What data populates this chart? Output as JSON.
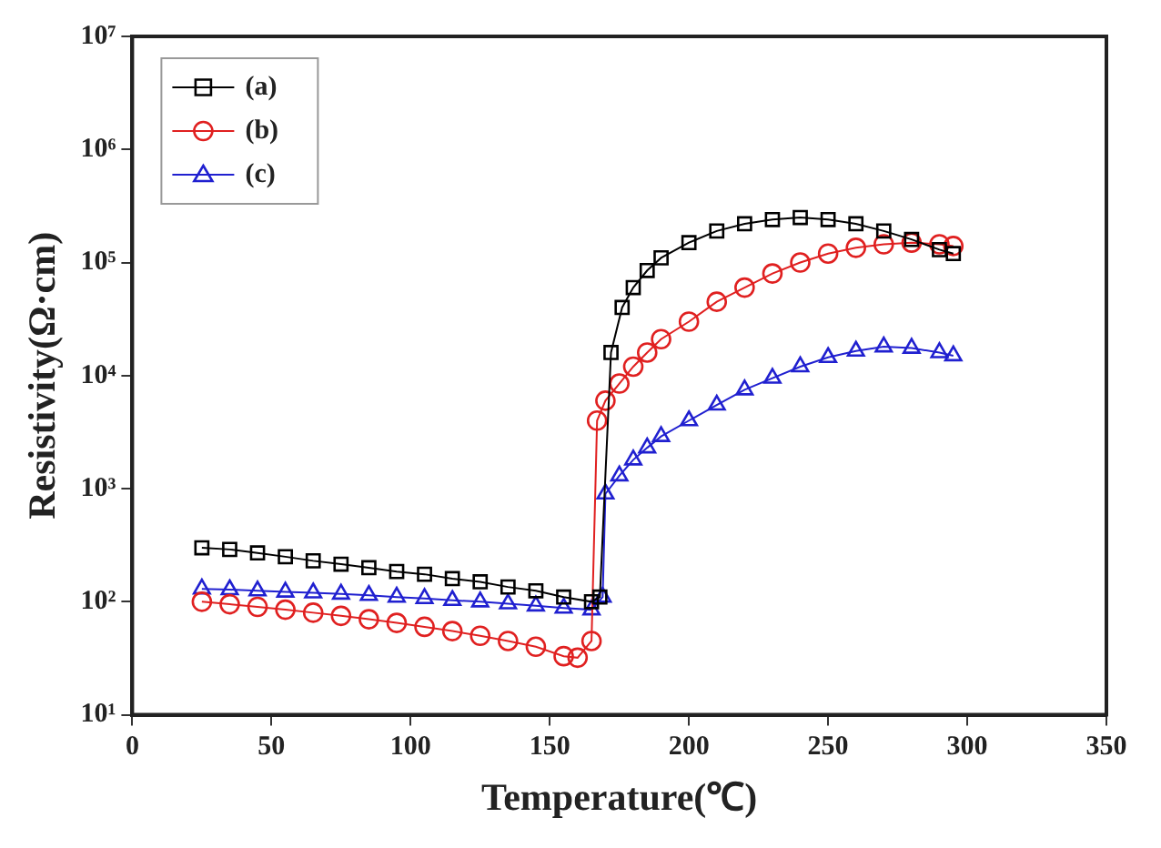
{
  "chart_data": {
    "type": "line",
    "xlabel": "Temperature(℃)",
    "ylabel": "Resistivity(Ω·cm)",
    "log": "y",
    "xlim": [
      0,
      350
    ],
    "xticks": [
      0,
      50,
      100,
      150,
      200,
      250,
      300,
      350
    ],
    "ylim": [
      10,
      10000000
    ],
    "yticks": [
      {
        "value": 10,
        "label": "10¹"
      },
      {
        "value": 100,
        "label": "10²"
      },
      {
        "value": 1000,
        "label": "10³"
      },
      {
        "value": 10000,
        "label": "10⁴"
      },
      {
        "value": 100000,
        "label": "10⁵"
      },
      {
        "value": 1000000,
        "label": "10⁶"
      },
      {
        "value": 10000000,
        "label": "10⁷"
      }
    ],
    "legend": "top left",
    "grid": false,
    "series": [
      {
        "name": "(a)",
        "color": "#000000",
        "marker": "square",
        "x": [
          25,
          35,
          45,
          55,
          65,
          75,
          85,
          95,
          105,
          115,
          125,
          135,
          145,
          155,
          165,
          168,
          172,
          176,
          180,
          185,
          190,
          200,
          210,
          220,
          230,
          240,
          250,
          260,
          270,
          280,
          290,
          295
        ],
        "values": [
          300,
          290,
          270,
          250,
          230,
          215,
          200,
          185,
          175,
          160,
          150,
          135,
          125,
          110,
          100,
          110,
          16000,
          40000,
          60000,
          85000,
          110000,
          150000,
          190000,
          220000,
          240000,
          250000,
          240000,
          220000,
          190000,
          160000,
          130000,
          120000
        ]
      },
      {
        "name": "(b)",
        "color": "#e02020",
        "marker": "circle",
        "x": [
          25,
          35,
          45,
          55,
          65,
          75,
          85,
          95,
          105,
          115,
          125,
          135,
          145,
          155,
          160,
          165,
          167,
          170,
          175,
          180,
          185,
          190,
          200,
          210,
          220,
          230,
          240,
          250,
          260,
          270,
          280,
          290,
          295
        ],
        "values": [
          100,
          95,
          90,
          85,
          80,
          75,
          70,
          65,
          60,
          55,
          50,
          45,
          40,
          33,
          32,
          45,
          4000,
          6000,
          8500,
          12000,
          16000,
          21000,
          30000,
          45000,
          60000,
          80000,
          100000,
          120000,
          135000,
          145000,
          150000,
          145000,
          140000
        ]
      },
      {
        "name": "(c)",
        "color": "#2020d0",
        "marker": "triangle",
        "x": [
          25,
          35,
          45,
          55,
          65,
          75,
          85,
          95,
          105,
          115,
          125,
          135,
          145,
          155,
          165,
          169,
          170,
          175,
          180,
          185,
          190,
          200,
          210,
          220,
          230,
          240,
          250,
          260,
          270,
          280,
          290,
          295
        ],
        "values": [
          130,
          128,
          125,
          122,
          120,
          117,
          114,
          110,
          107,
          103,
          100,
          96,
          92,
          88,
          85,
          110,
          900,
          1300,
          1800,
          2300,
          2900,
          4000,
          5500,
          7500,
          9500,
          12000,
          14500,
          16500,
          18000,
          17500,
          16000,
          15000
        ]
      }
    ]
  }
}
